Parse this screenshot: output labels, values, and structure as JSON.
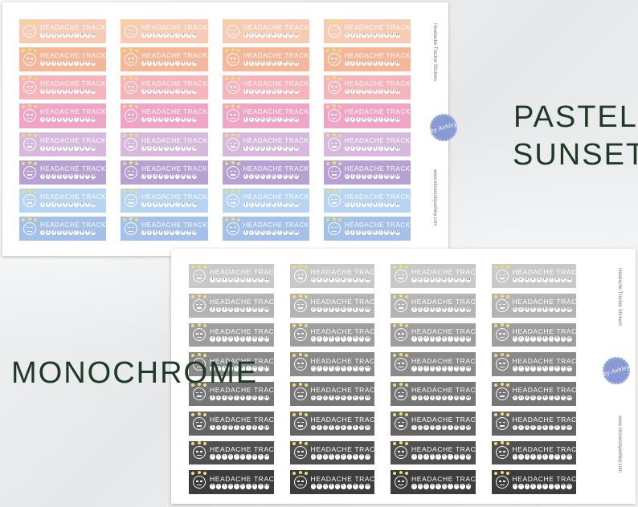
{
  "labels": {
    "pastel_line1": "PASTEL",
    "pastel_line2": "SUNSET",
    "monochrome": "MONOCHROME"
  },
  "sticker": {
    "title": "HEADACHE TRACKER",
    "numbers": [
      "1",
      "2",
      "3",
      "4",
      "5",
      "6",
      "7",
      "8",
      "9",
      "10"
    ]
  },
  "sheet_side_text": {
    "title": "Headache Tracker Stickers",
    "url": "www.stickersbyashley.com"
  },
  "badge_text": "by Ashley",
  "pastel_sheet": {
    "rows": 8,
    "columns": 4,
    "row_colors": [
      "#f8cbb5",
      "#f6b798",
      "#f5b5bb",
      "#f0a4c6",
      "#d7b9de",
      "#b7a1d3",
      "#b7d5f2",
      "#a4c1ea"
    ]
  },
  "mono_sheet": {
    "rows": 8,
    "columns": 4,
    "row_colors": [
      "#c9c9c9",
      "#b4b4b4",
      "#9e9e9e",
      "#8a8a8a",
      "#767676",
      "#636363",
      "#505050",
      "#3c3c3c"
    ]
  },
  "colors": {
    "headline_text": "#1e3a26",
    "badge_fill": "#8899d3",
    "spark": "#f2dc79"
  },
  "icon": "headache-face-icon"
}
